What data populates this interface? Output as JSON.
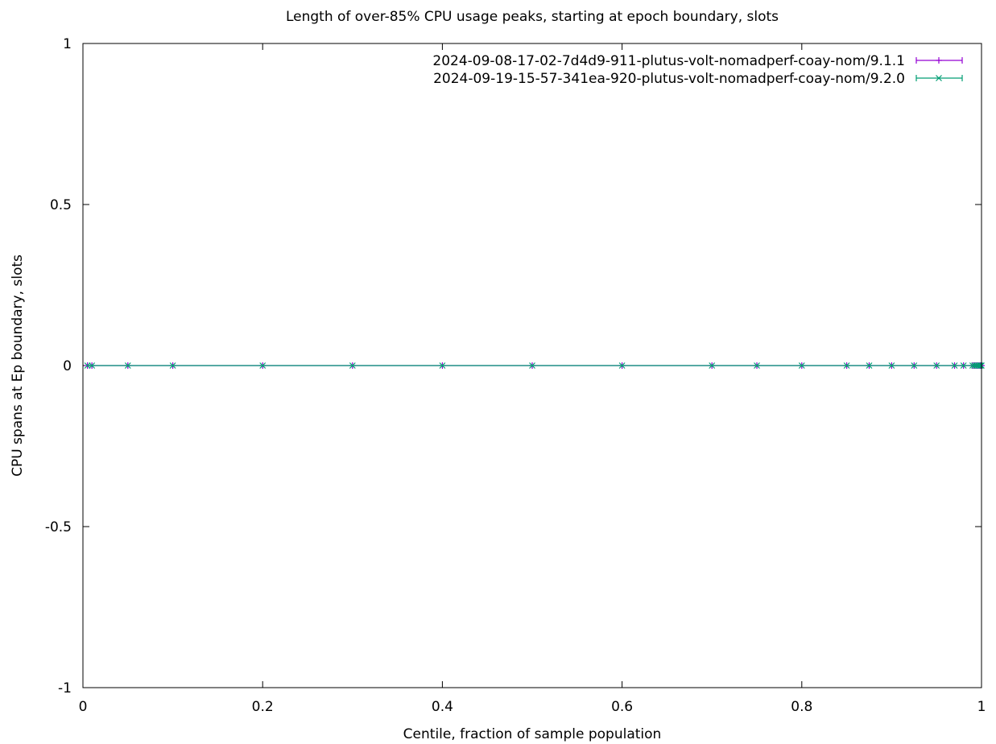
{
  "chart_data": {
    "type": "line",
    "title": "Length of over-85% CPU usage peaks, starting at epoch boundary, slots",
    "xlabel": "Centile, fraction of sample population",
    "ylabel": "CPU spans at Ep boundary, slots",
    "xlim": [
      0,
      1
    ],
    "ylim": [
      -1,
      1
    ],
    "x_ticks": [
      "0",
      "0.2",
      "0.4",
      "0.6",
      "0.8",
      "1"
    ],
    "y_ticks": [
      "1",
      "0.5",
      "0",
      "-0.5",
      "-1"
    ],
    "grid": false,
    "legend_position": "top-right",
    "x": [
      0.005,
      0.01,
      0.05,
      0.1,
      0.2,
      0.3,
      0.4,
      0.5,
      0.6,
      0.7,
      0.75,
      0.8,
      0.85,
      0.875,
      0.9,
      0.925,
      0.95,
      0.97,
      0.98,
      0.99,
      0.992,
      0.994,
      0.996,
      0.998,
      0.999,
      1.0
    ],
    "series": [
      {
        "name": "2024-09-08-17-02-7d4d9-911-plutus-volt-nomadperf-coay-nom/9.1.1",
        "color": "#9400d3",
        "marker": "plus",
        "values": [
          0,
          0,
          0,
          0,
          0,
          0,
          0,
          0,
          0,
          0,
          0,
          0,
          0,
          0,
          0,
          0,
          0,
          0,
          0,
          0,
          0,
          0,
          0,
          0,
          0,
          0
        ]
      },
      {
        "name": "2024-09-19-15-57-341ea-920-plutus-volt-nomadperf-coay-nom/9.2.0",
        "color": "#009e73",
        "marker": "x",
        "values": [
          0,
          0,
          0,
          0,
          0,
          0,
          0,
          0,
          0,
          0,
          0,
          0,
          0,
          0,
          0,
          0,
          0,
          0,
          0,
          0,
          0,
          0,
          0,
          0,
          0,
          0
        ]
      }
    ]
  }
}
